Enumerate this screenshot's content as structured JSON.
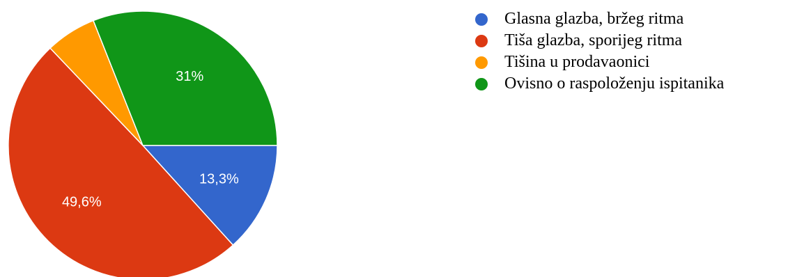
{
  "chart_data": {
    "type": "pie",
    "slices": [
      {
        "label": "Glasna glazba, bržeg ritma",
        "value": 13.3,
        "display": "13,3%",
        "color": "#3366cc"
      },
      {
        "label": "Tiša glazba, sporijeg ritma",
        "value": 49.6,
        "display": "49,6%",
        "color": "#dc3912"
      },
      {
        "label": "Tišina u prodavaonici",
        "value": 6.1,
        "display": "",
        "color": "#ff9900"
      },
      {
        "label": "Ovisno o raspoloženju ispitanika",
        "value": 31.0,
        "display": "31%",
        "color": "#109618"
      }
    ],
    "legend_position": "right",
    "start_direction": "east",
    "direction": "clockwise"
  }
}
